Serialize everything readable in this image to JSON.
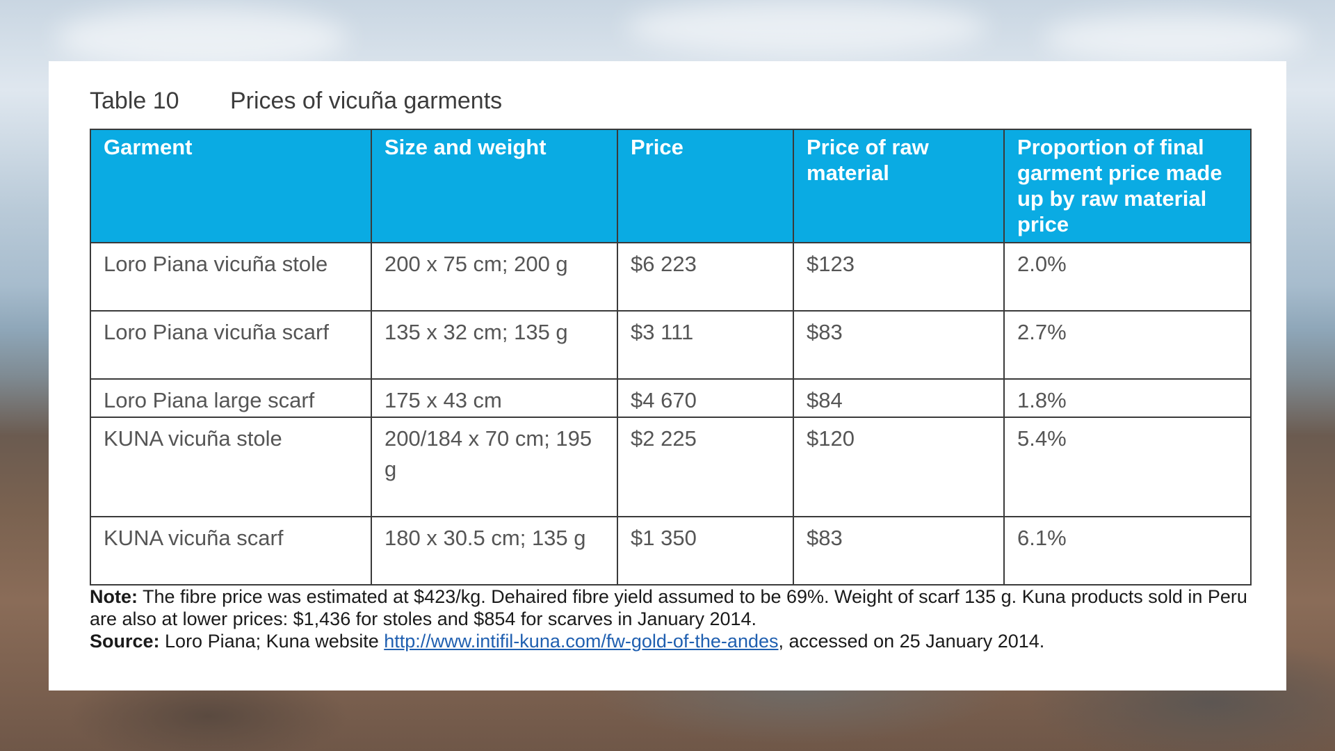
{
  "caption": {
    "number": "Table 10",
    "title": "Prices of vicuña garments"
  },
  "table": {
    "headers": [
      "Garment",
      "Size and weight",
      "Price",
      "Price of raw material",
      "Proportion of final garment price made up by raw material price"
    ],
    "rows": [
      [
        "Loro Piana vicuña stole",
        "200 x 75 cm; 200 g",
        "$6 223",
        "$123",
        "2.0%"
      ],
      [
        "Loro Piana vicuña scarf",
        "135 x 32 cm; 135 g",
        "$3 111",
        "$83",
        "2.7%"
      ],
      [
        "Loro Piana large scarf",
        "175 x 43 cm",
        "$4 670",
        "$84",
        "1.8%"
      ],
      [
        "KUNA vicuña stole",
        "200/184 x 70 cm; 195 g",
        "$2 225",
        "$120",
        "5.4%"
      ],
      [
        "KUNA vicuña scarf",
        "180 x 30.5 cm; 135 g",
        "$1 350",
        "$83",
        "6.1%"
      ]
    ]
  },
  "note": {
    "label": "Note:",
    "text": " The fibre price was estimated at $423/kg. Dehaired fibre yield assumed to be 69%. Weight of scarf 135 g. Kuna products sold in Peru are also at lower prices: $1,436 for stoles and $854 for scarves in January 2014."
  },
  "source": {
    "label": "Source:",
    "text_before": " Loro Piana; Kuna website ",
    "link": "http://www.intifil-kuna.com/fw-gold-of-the-andes",
    "text_after": ", accessed on 25 January 2014."
  },
  "colors": {
    "header_background": "#0aabe3",
    "header_text": "#ffffff",
    "link": "#1f5fb0"
  }
}
